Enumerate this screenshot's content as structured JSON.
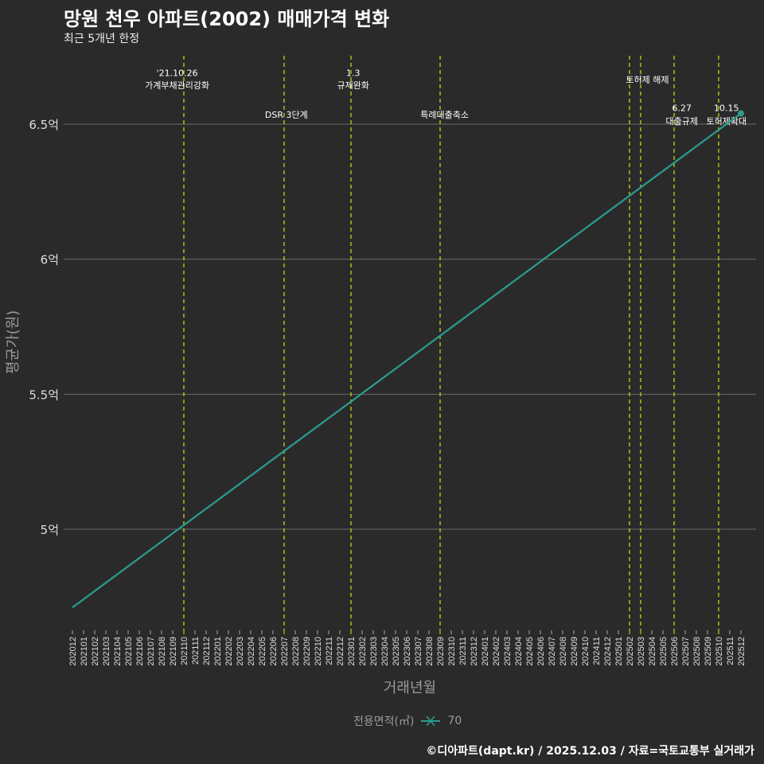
{
  "title": "망원 천우 아파트(2002) 매매가격 변화",
  "subtitle": "최근 5개년 한정",
  "legend": {
    "title": "전용면적(㎡)",
    "label": "70"
  },
  "footer": "©디아파트(dapt.kr) / 2025.12.03 / 자료=국토교통부 실거래가",
  "colors": {
    "background": "#2b2a2b",
    "line": "#2a9d8f",
    "event_line": "#d4e017",
    "grid": "#6a6a6a"
  },
  "chart_data": {
    "type": "line",
    "title": "망원 천우 아파트(2002) 매매가격 변화",
    "xlabel": "거래년월",
    "ylabel": "평균가(원)",
    "categories": [
      "202012",
      "202101",
      "202102",
      "202103",
      "202104",
      "202105",
      "202106",
      "202107",
      "202108",
      "202109",
      "202110",
      "202111",
      "202112",
      "202201",
      "202202",
      "202203",
      "202204",
      "202205",
      "202206",
      "202207",
      "202208",
      "202209",
      "202210",
      "202211",
      "202212",
      "202301",
      "202302",
      "202303",
      "202304",
      "202305",
      "202306",
      "202307",
      "202308",
      "202309",
      "202310",
      "202311",
      "202312",
      "202401",
      "202402",
      "202403",
      "202404",
      "202405",
      "202406",
      "202407",
      "202408",
      "202409",
      "202410",
      "202411",
      "202412",
      "202501",
      "202502",
      "202503",
      "202504",
      "202505",
      "202506",
      "202507",
      "202508",
      "202509",
      "202510",
      "202511",
      "202512"
    ],
    "ylim": [
      4.62,
      6.77
    ],
    "yticks": [
      {
        "value": 5,
        "label": "5억"
      },
      {
        "value": 5.5,
        "label": "5.5억"
      },
      {
        "value": 6,
        "label": "6억"
      },
      {
        "value": 6.5,
        "label": "6.5억"
      }
    ],
    "grid": "horizontal",
    "legend_position": "bottom",
    "series": [
      {
        "name": "70",
        "points": [
          {
            "x": "202012",
            "y": 4.71
          },
          {
            "x": "202512",
            "y": 6.54
          }
        ],
        "marker_at_end": true
      }
    ],
    "event_lines": [
      "202110",
      "202207",
      "202301",
      "202309",
      "202502",
      "202503",
      "202506",
      "202510"
    ],
    "annotations": [
      {
        "text": "'21.10.26",
        "x_index": 9.4,
        "y": 6.69
      },
      {
        "text": "가계부채관리강화",
        "x_index": 9.4,
        "y": 6.645
      },
      {
        "text": "DSR 3단계",
        "x_index": 19.2,
        "y": 6.535
      },
      {
        "text": "1.3",
        "x_index": 25.2,
        "y": 6.69
      },
      {
        "text": "규제완화",
        "x_index": 25.2,
        "y": 6.645
      },
      {
        "text": "특례대출축소",
        "x_index": 33.4,
        "y": 6.535
      },
      {
        "text": "토허제 해제",
        "x_index": 51.6,
        "y": 6.665
      },
      {
        "text": "6.27",
        "x_index": 54.7,
        "y": 6.56
      },
      {
        "text": "대출규제",
        "x_index": 54.7,
        "y": 6.512
      },
      {
        "text": "10.15",
        "x_index": 58.7,
        "y": 6.56
      },
      {
        "text": "토허제확대",
        "x_index": 58.7,
        "y": 6.512
      }
    ]
  }
}
